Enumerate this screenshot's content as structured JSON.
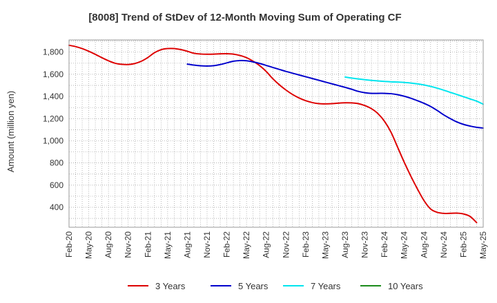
{
  "chart_data": {
    "type": "line",
    "title": "[8008]  Trend of StDev of 12-Month Moving Sum of Operating CF",
    "xlabel": "",
    "ylabel": "Amount (million yen)",
    "ylim": [
      220,
      1910
    ],
    "yticks": [
      400,
      600,
      800,
      1000,
      1200,
      1400,
      1600,
      1800
    ],
    "ytick_labels": [
      "400",
      "600",
      "800",
      "1,000",
      "1,200",
      "1,400",
      "1,600",
      "1,800"
    ],
    "x_tick_labels": [
      "Feb-20",
      "May-20",
      "Aug-20",
      "Nov-20",
      "Feb-21",
      "May-21",
      "Aug-21",
      "Nov-21",
      "Feb-22",
      "May-22",
      "Aug-22",
      "Nov-22",
      "Feb-23",
      "May-23",
      "Aug-23",
      "Nov-23",
      "Feb-24",
      "May-24",
      "Aug-24",
      "Nov-24",
      "Feb-25",
      "May-25"
    ],
    "x_start": "Feb-20",
    "x_months": 63,
    "grid": true,
    "legend_position": "bottom",
    "series": [
      {
        "name": "3 Years",
        "color": "#dd0000",
        "start_index": 0,
        "values": [
          1862,
          1850,
          1832,
          1808,
          1780,
          1750,
          1722,
          1700,
          1690,
          1688,
          1697,
          1718,
          1752,
          1795,
          1822,
          1832,
          1832,
          1823,
          1808,
          1790,
          1783,
          1781,
          1782,
          1785,
          1786,
          1782,
          1770,
          1750,
          1718,
          1678,
          1625,
          1560,
          1505,
          1458,
          1418,
          1386,
          1362,
          1345,
          1335,
          1333,
          1335,
          1340,
          1343,
          1342,
          1335,
          1318,
          1290,
          1245,
          1175,
          1075,
          940,
          805,
          680,
          565,
          460,
          385,
          355,
          345,
          346,
          347,
          340,
          318,
          262
        ]
      },
      {
        "name": "5 Years",
        "color": "#0000cc",
        "start_index": 18,
        "values": [
          1692,
          1683,
          1677,
          1675,
          1678,
          1688,
          1703,
          1718,
          1724,
          1722,
          1712,
          1698,
          1680,
          1662,
          1644,
          1626,
          1610,
          1594,
          1578,
          1562,
          1546,
          1530,
          1514,
          1498,
          1482,
          1465,
          1446,
          1434,
          1428,
          1428,
          1428,
          1425,
          1416,
          1402,
          1384,
          1362,
          1338,
          1310,
          1274,
          1234,
          1200,
          1170,
          1148,
          1133,
          1122,
          1115
        ]
      },
      {
        "name": "7 Years",
        "color": "#00e5ee",
        "start_index": 42,
        "values": [
          1575,
          1566,
          1558,
          1551,
          1545,
          1540,
          1536,
          1532,
          1530,
          1526,
          1521,
          1514,
          1504,
          1491,
          1475,
          1457,
          1437,
          1418,
          1398,
          1378,
          1358,
          1330
        ]
      },
      {
        "name": "10 Years",
        "color": "#1a8a1a",
        "start_index": 0,
        "values": []
      }
    ]
  }
}
